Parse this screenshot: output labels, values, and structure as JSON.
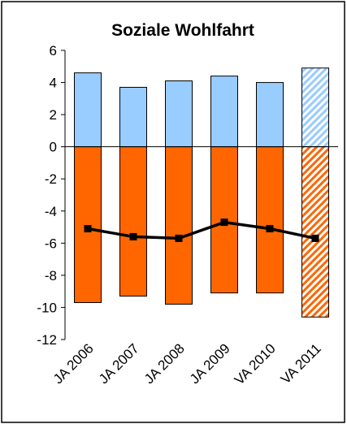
{
  "chart_data": {
    "type": "bar_line",
    "title": "Soziale Wohlfahrt",
    "categories": [
      "JA 2006",
      "JA 2007",
      "JA 2008",
      "JA 2009",
      "VA 2010",
      "VA 2011"
    ],
    "series": [
      {
        "type": "bar",
        "color": "#99ccff",
        "values": [
          4.6,
          3.7,
          4.1,
          4.4,
          4.0,
          4.9
        ]
      },
      {
        "type": "bar",
        "color": "#ff6600",
        "values": [
          -9.7,
          -9.3,
          -9.8,
          -9.1,
          -9.1,
          -10.6
        ]
      },
      {
        "type": "line",
        "color": "#000000",
        "values": [
          -5.1,
          -5.6,
          -5.7,
          -4.7,
          -5.1,
          -5.7
        ]
      }
    ],
    "hatch": [
      5
    ],
    "ylim": [
      -12,
      6
    ],
    "yticks": [
      -12,
      -10,
      -8,
      -6,
      -4,
      -2,
      0,
      2,
      4,
      6
    ]
  }
}
